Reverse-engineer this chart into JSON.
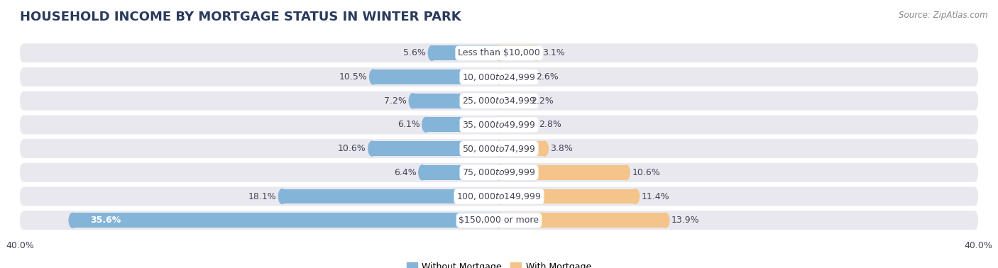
{
  "title": "HOUSEHOLD INCOME BY MORTGAGE STATUS IN WINTER PARK",
  "source": "Source: ZipAtlas.com",
  "categories": [
    "Less than $10,000",
    "$10,000 to $24,999",
    "$25,000 to $34,999",
    "$35,000 to $49,999",
    "$50,000 to $74,999",
    "$75,000 to $99,999",
    "$100,000 to $149,999",
    "$150,000 or more"
  ],
  "without_mortgage": [
    5.6,
    10.5,
    7.2,
    6.1,
    10.6,
    6.4,
    18.1,
    35.6
  ],
  "with_mortgage": [
    3.1,
    2.6,
    2.2,
    2.8,
    3.8,
    10.6,
    11.4,
    13.9
  ],
  "color_without": "#85b4d9",
  "color_with": "#f5c48a",
  "axis_max": 40.0,
  "background_row_light": "#e8e8ee",
  "background_row_dark": "#d8d8e2",
  "background_fig_color": "#ffffff",
  "title_fontsize": 13,
  "source_fontsize": 8.5,
  "label_fontsize": 9,
  "bar_label_fontsize": 9,
  "legend_fontsize": 9,
  "axis_label_fontsize": 9,
  "title_color": "#2a3a5c",
  "label_color": "#444455",
  "source_color": "#888888"
}
